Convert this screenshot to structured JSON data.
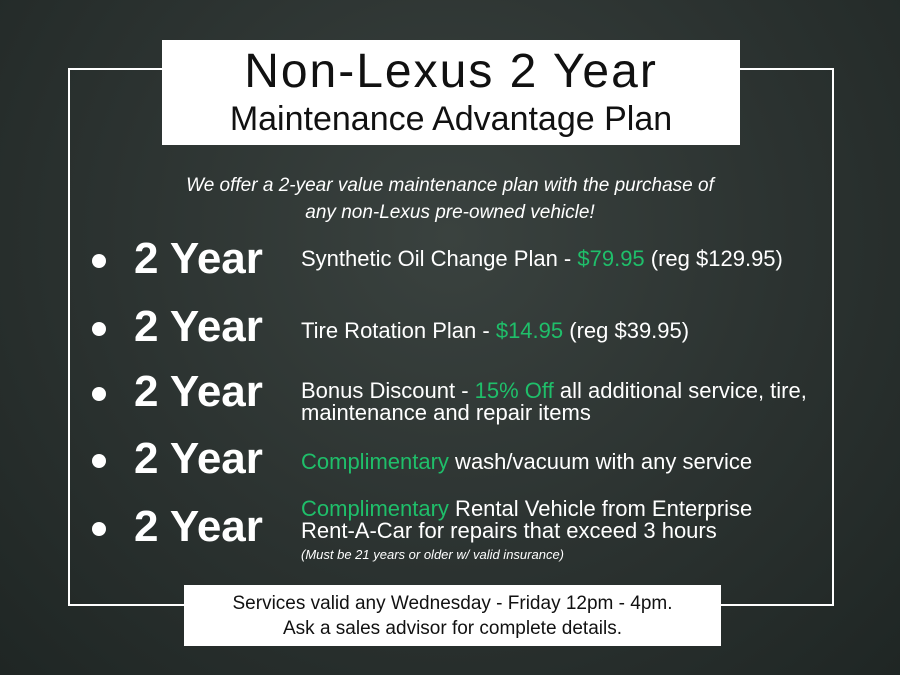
{
  "title": {
    "line1": "Non-Lexus 2 Year",
    "line2": "Maintenance Advantage Plan"
  },
  "intro": {
    "line1": "We offer a 2-year value maintenance plan with the purchase of",
    "line2": "any non-Lexus pre-owned vehicle!"
  },
  "items": [
    {
      "label": "2 Year",
      "pre": "Synthetic Oil Change Plan - ",
      "hl": "$79.95",
      "post": " (reg $129.95)"
    },
    {
      "label": "2 Year",
      "pre": "Tire Rotation Plan - ",
      "hl": "$14.95",
      "post": " (reg $39.95)"
    },
    {
      "label": "2 Year",
      "pre": "Bonus Discount - ",
      "hl": "15% Off",
      "post": " all additional service, tire,",
      "line2": "maintenance and repair items"
    },
    {
      "label": "2 Year",
      "pre": "",
      "hl": "Complimentary",
      "post": " wash/vacuum with any service"
    },
    {
      "label": "2 Year",
      "pre": "",
      "hl": "Complimentary",
      "post": " Rental Vehicle from Enterprise",
      "line2": "Rent-A-Car for repairs that exceed 3 hours",
      "note": "(Must be 21 years or older w/ valid insurance)"
    }
  ],
  "footer": {
    "line1": "Services valid any Wednesday - Friday 12pm - 4pm.",
    "line2": "Ask a sales advisor for complete details."
  },
  "colors": {
    "accent": "#1fbf6a",
    "background": "#2b3230"
  }
}
